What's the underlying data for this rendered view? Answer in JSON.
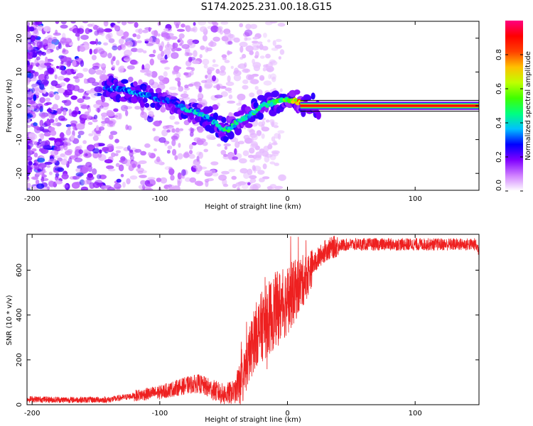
{
  "title": "S174.2025.231.00.18.G15",
  "chart_data": [
    {
      "type": "heatmap",
      "xlabel": "Height of straight line (km)",
      "ylabel": "Frequency (Hz)",
      "xlim": [
        -204,
        150
      ],
      "ylim": [
        -25,
        25
      ],
      "xticks": [
        -200,
        -100,
        0,
        100
      ],
      "yticks": [
        -20,
        -10,
        0,
        10,
        20
      ],
      "colorbar": {
        "label": "Normalized spectral amplitude",
        "range": [
          0,
          1
        ],
        "ticks": [
          "0.0",
          "0.2",
          "0.4",
          "0.6",
          "0.8"
        ],
        "tick_values": [
          0.0,
          0.2,
          0.4,
          0.6,
          0.8
        ],
        "colors": [
          "#ffffff",
          "#d080ff",
          "#8000ff",
          "#0000ff",
          "#00c0ff",
          "#00ff80",
          "#40ff00",
          "#c0ff00",
          "#ffc000",
          "#ff4000",
          "#ff0000",
          "#ff0080"
        ]
      },
      "ridge": {
        "heights_km": [
          -143,
          -130,
          -120,
          -110,
          -100,
          -90,
          -80,
          -70,
          -60,
          -50,
          -45,
          -40,
          -30,
          -20,
          -10,
          0,
          10,
          20,
          150
        ],
        "frequency_hz": [
          5,
          5,
          4,
          3,
          2,
          1,
          -1,
          -2,
          -4,
          -7,
          -7,
          -5,
          -3,
          0,
          1,
          2,
          1,
          0,
          0
        ],
        "amplitude": [
          0.3,
          0.35,
          0.35,
          0.35,
          0.3,
          0.3,
          0.4,
          0.4,
          0.4,
          0.45,
          0.5,
          0.45,
          0.45,
          0.5,
          0.5,
          0.6,
          0.8,
          0.85,
          0.85
        ]
      }
    },
    {
      "type": "line",
      "xlabel": "Height of straight line (km)",
      "ylabel": "SNR (10 * v/v)",
      "xlim": [
        -204,
        150
      ],
      "ylim": [
        0,
        760
      ],
      "xticks": [
        -200,
        -100,
        0,
        100
      ],
      "yticks": [
        0,
        200,
        400,
        600
      ],
      "color": "#ee2020",
      "series": [
        {
          "name": "SNR",
          "x": [
            -204,
            -180,
            -160,
            -140,
            -120,
            -100,
            -90,
            -80,
            -70,
            -60,
            -50,
            -40,
            -35,
            -30,
            -25,
            -20,
            -15,
            -10,
            -5,
            0,
            5,
            10,
            15,
            20,
            25,
            30,
            35,
            40,
            50,
            60,
            80,
            100,
            120,
            140,
            147,
            150
          ],
          "y": [
            25,
            22,
            22,
            22,
            40,
            55,
            70,
            85,
            95,
            70,
            45,
            60,
            110,
            220,
            310,
            350,
            380,
            420,
            440,
            470,
            500,
            540,
            570,
            620,
            660,
            690,
            700,
            710,
            715,
            715,
            715,
            715,
            715,
            715,
            715,
            690
          ]
        }
      ]
    }
  ]
}
